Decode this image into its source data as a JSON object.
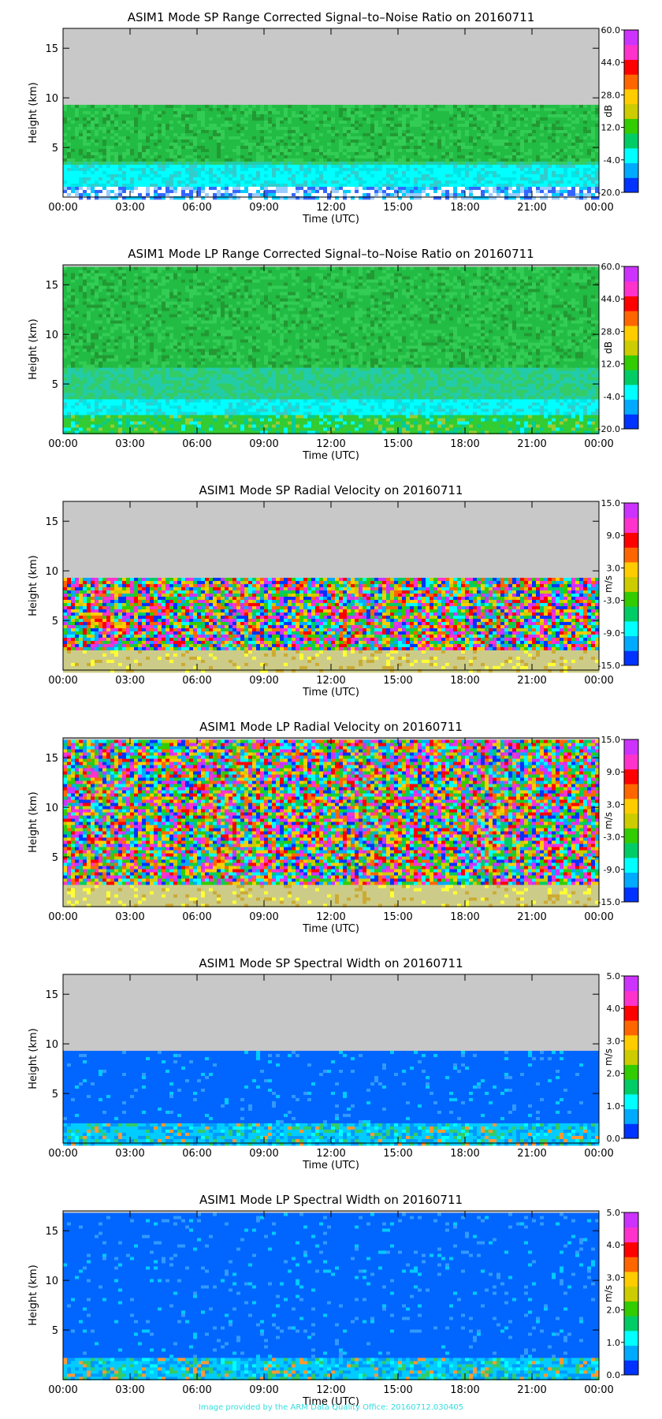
{
  "time_ticks": [
    "00:00",
    "03:00",
    "06:00",
    "09:00",
    "12:00",
    "15:00",
    "18:00",
    "21:00",
    "00:00"
  ],
  "xlabel": "Time (UTC)",
  "ylabel": "Height (km)",
  "footer": "Image provided by the ARM Data Quality Office: 20160712.030405",
  "colors": {
    "missing": "#c8c8c8",
    "rainbow": [
      "#0033ff",
      "#00aaff",
      "#00ffff",
      "#00cc66",
      "#33cc00",
      "#cccc00",
      "#ffcc00",
      "#ff6600",
      "#ff0000",
      "#ff33cc",
      "#cc33ff"
    ]
  },
  "chart_data": [
    {
      "type": "heatmap",
      "title": "ASIM1 Mode SP Range Corrected Signal–to–Noise Ratio on 20160711",
      "xlabel": "Time (UTC)",
      "ylabel": "Height (km)",
      "xlim": [
        "00:00",
        "24:00"
      ],
      "ylim": [
        0,
        17
      ],
      "yticks": [
        5,
        10,
        15
      ],
      "colorbar": {
        "label": "dB",
        "ticks": [
          "60.0",
          "44.0",
          "28.0",
          "12.0",
          "-4.0",
          "-20.0"
        ],
        "range": [
          -20,
          60
        ]
      },
      "data_top_km": 9.3,
      "pattern": "snr"
    },
    {
      "type": "heatmap",
      "title": "ASIM1 Mode LP Range Corrected Signal–to–Noise Ratio on 20160711",
      "xlabel": "Time (UTC)",
      "ylabel": "Height (km)",
      "xlim": [
        "00:00",
        "24:00"
      ],
      "ylim": [
        0,
        17
      ],
      "yticks": [
        5,
        10,
        15
      ],
      "colorbar": {
        "label": "dB",
        "ticks": [
          "60.0",
          "44.0",
          "28.0",
          "12.0",
          "-4.0",
          "-20.0"
        ],
        "range": [
          -20,
          60
        ]
      },
      "data_top_km": 16.8,
      "pattern": "snr"
    },
    {
      "type": "heatmap",
      "title": "ASIM1 Mode SP Radial Velocity  on 20160711",
      "xlabel": "Time (UTC)",
      "ylabel": "Height (km)",
      "xlim": [
        "00:00",
        "24:00"
      ],
      "ylim": [
        0,
        17
      ],
      "yticks": [
        5,
        10,
        15
      ],
      "colorbar": {
        "label": "m/s",
        "ticks": [
          "15.0",
          "9.0",
          "3.0",
          "-3.0",
          "-9.0",
          "-15.0"
        ],
        "range": [
          -15,
          15
        ]
      },
      "data_top_km": 9.3,
      "pattern": "velocity"
    },
    {
      "type": "heatmap",
      "title": "ASIM1 Mode LP Radial Velocity  on 20160711",
      "xlabel": "Time (UTC)",
      "ylabel": "Height (km)",
      "xlim": [
        "00:00",
        "24:00"
      ],
      "ylim": [
        0,
        17
      ],
      "yticks": [
        5,
        10,
        15
      ],
      "colorbar": {
        "label": "m/s",
        "ticks": [
          "15.0",
          "9.0",
          "3.0",
          "-3.0",
          "-9.0",
          "-15.0"
        ],
        "range": [
          -15,
          15
        ]
      },
      "data_top_km": 16.8,
      "pattern": "velocity"
    },
    {
      "type": "heatmap",
      "title": "ASIM1 Mode SP Spectral Width  on 20160711",
      "xlabel": "Time (UTC)",
      "ylabel": "Height (km)",
      "xlim": [
        "00:00",
        "24:00"
      ],
      "ylim": [
        0,
        17
      ],
      "yticks": [
        5,
        10,
        15
      ],
      "colorbar": {
        "label": "m/s",
        "ticks": [
          "5.0",
          "4.0",
          "3.0",
          "2.0",
          "1.0",
          "0.0"
        ],
        "range": [
          0,
          5
        ]
      },
      "data_top_km": 9.3,
      "pattern": "width"
    },
    {
      "type": "heatmap",
      "title": "ASIM1 Mode LP Spectral Width  on 20160711",
      "xlabel": "Time (UTC)",
      "ylabel": "Height (km)",
      "xlim": [
        "00:00",
        "24:00"
      ],
      "ylim": [
        0,
        17
      ],
      "yticks": [
        5,
        10,
        15
      ],
      "colorbar": {
        "label": "m/s",
        "ticks": [
          "5.0",
          "4.0",
          "3.0",
          "2.0",
          "1.0",
          "0.0"
        ],
        "range": [
          0,
          5
        ]
      },
      "data_top_km": 16.8,
      "pattern": "width"
    }
  ]
}
